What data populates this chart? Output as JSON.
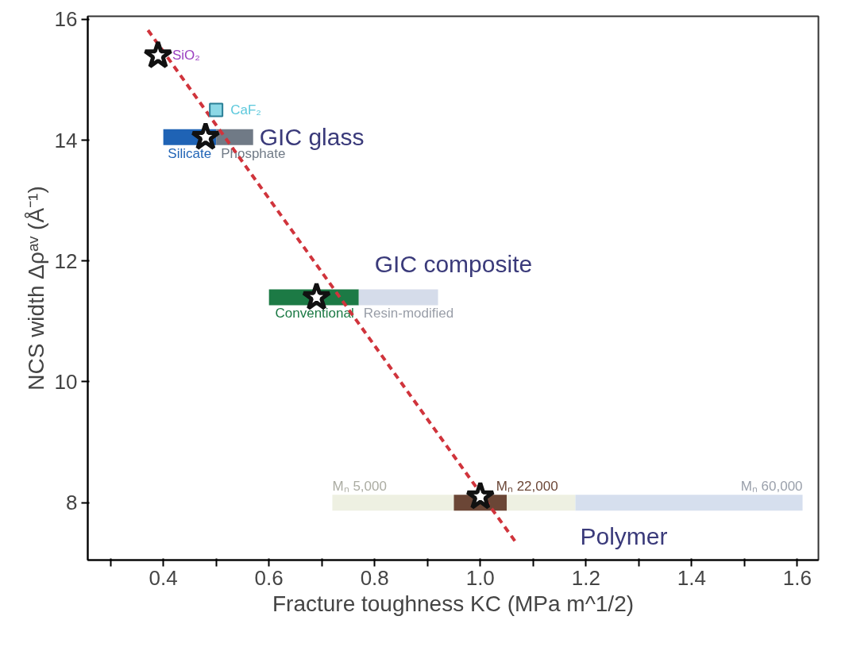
{
  "chart_data": {
    "type": "scatter",
    "xlabel": "Fracture toughness KC (MPa m^1/2)",
    "ylabel": "NCS width Δρᵃᵛ (Å⁻¹)",
    "xlim": [
      0.257,
      1.64
    ],
    "ylim": [
      7.05,
      16.05
    ],
    "xticks": [
      {
        "value": 0.3,
        "label": null
      },
      0.4,
      {
        "value": 0.5,
        "label": null
      },
      0.6,
      {
        "value": 0.7,
        "label": null
      },
      0.8,
      {
        "value": 0.9,
        "label": null
      },
      "1.0",
      {
        "value": 1.1,
        "label": null
      },
      1.2,
      {
        "value": 1.3,
        "label": null
      },
      1.4,
      {
        "value": 1.5,
        "label": null
      },
      1.6
    ],
    "yticks": [
      8,
      10,
      12,
      14,
      16
    ],
    "grid": false,
    "legend": false,
    "series": [
      {
        "type": "line",
        "name": "Silicate",
        "color": "#1f63b5",
        "x": [
          0.4,
          0.5
        ],
        "values": [
          14.05,
          14.05
        ]
      },
      {
        "type": "line",
        "name": "Phosphate",
        "color": "#707a86",
        "x": [
          0.5,
          0.57
        ],
        "values": [
          14.05,
          14.05
        ]
      },
      {
        "type": "line",
        "name": "Conventional",
        "color": "#1c7a45",
        "x": [
          0.6,
          0.77
        ],
        "values": [
          11.4,
          11.4
        ]
      },
      {
        "type": "line",
        "name": "Resin-modified",
        "color": "#d5dcea",
        "x": [
          0.77,
          0.92
        ],
        "values": [
          11.4,
          11.4
        ]
      },
      {
        "type": "line",
        "name": "Mₙ 5,000",
        "color": "#eef0e2",
        "x": [
          0.72,
          1.18
        ],
        "values": [
          8.0,
          8.0
        ]
      },
      {
        "type": "line",
        "name": "Mₙ 22,000",
        "color": "#6b4636",
        "x": [
          0.95,
          1.05
        ],
        "values": [
          8.0,
          8.0
        ]
      },
      {
        "type": "line",
        "name": "Mₙ 60,000",
        "color": "#d6dfee",
        "x": [
          1.18,
          1.61
        ],
        "values": [
          8.0,
          8.0
        ]
      },
      {
        "type": "line",
        "color": "#d0343c",
        "line_style": "dashed",
        "x": [
          0.371,
          1.066
        ],
        "values": [
          15.82,
          7.36
        ]
      },
      {
        "name": "CaF₂",
        "marker": "square",
        "color": "#5bc8dc",
        "x": [
          0.5
        ],
        "values": [
          14.5
        ]
      },
      {
        "name": "SiO₂",
        "marker": "star",
        "color": "#111111",
        "x": [
          0.39
        ],
        "values": [
          15.4
        ]
      },
      {
        "marker": "star",
        "color": "#111111",
        "x": [
          0.48,
          0.69,
          1.0
        ],
        "values": [
          14.05,
          11.4,
          8.1
        ]
      }
    ],
    "annotations": [
      {
        "text": "GIC glass",
        "x": 0.57,
        "y": 14.05
      },
      {
        "text": "GIC composite",
        "x": 0.77,
        "y": 11.4
      },
      {
        "text": "Polymer",
        "x": 1.18,
        "y": 8.0
      }
    ]
  }
}
